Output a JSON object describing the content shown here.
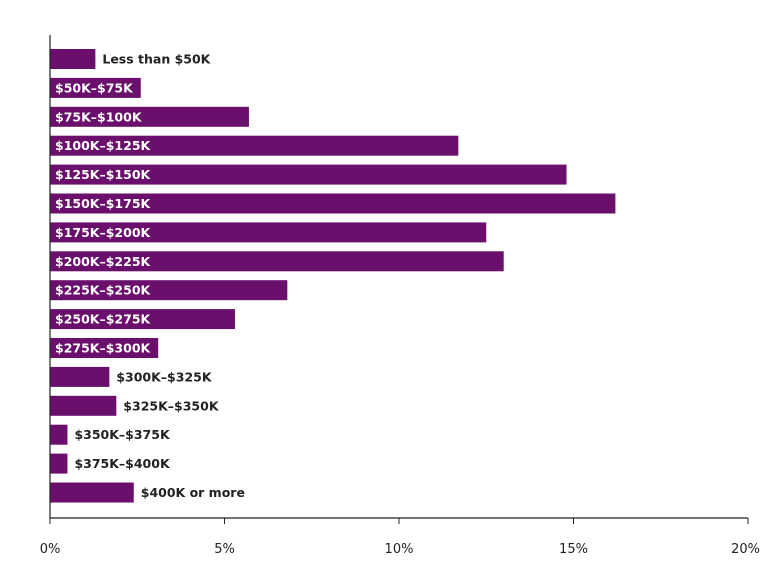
{
  "chart_data": {
    "type": "bar",
    "orientation": "horizontal",
    "categories": [
      "Less than $50K",
      "$50K–$75K",
      "$75K–$100K",
      "$100K–$125K",
      "$125K–$150K",
      "$150K–$175K",
      "$175K–$200K",
      "$200K–$225K",
      "$225K–$250K",
      "$250K–$275K",
      "$275K–$300K",
      "$300K–$325K",
      "$325K–$350K",
      "$350K–$375K",
      "$375K–$400K",
      "$400K or more"
    ],
    "values": [
      1.3,
      2.6,
      5.7,
      11.7,
      14.8,
      16.2,
      12.5,
      13.0,
      6.8,
      5.3,
      3.1,
      1.7,
      1.9,
      0.5,
      0.5,
      2.4
    ],
    "xlim": [
      0,
      20
    ],
    "xticks": [
      0,
      5,
      10,
      15,
      20
    ],
    "xtick_labels": [
      "0%",
      "5%",
      "10%",
      "15%",
      "20%"
    ],
    "title": "",
    "xlabel": "",
    "ylabel": "",
    "grid": false,
    "legend": "none",
    "colors": {
      "bar": "#6a0f6b",
      "axis": "#222222",
      "label_inside": "#ffffff",
      "label_outside": "#222222"
    }
  }
}
